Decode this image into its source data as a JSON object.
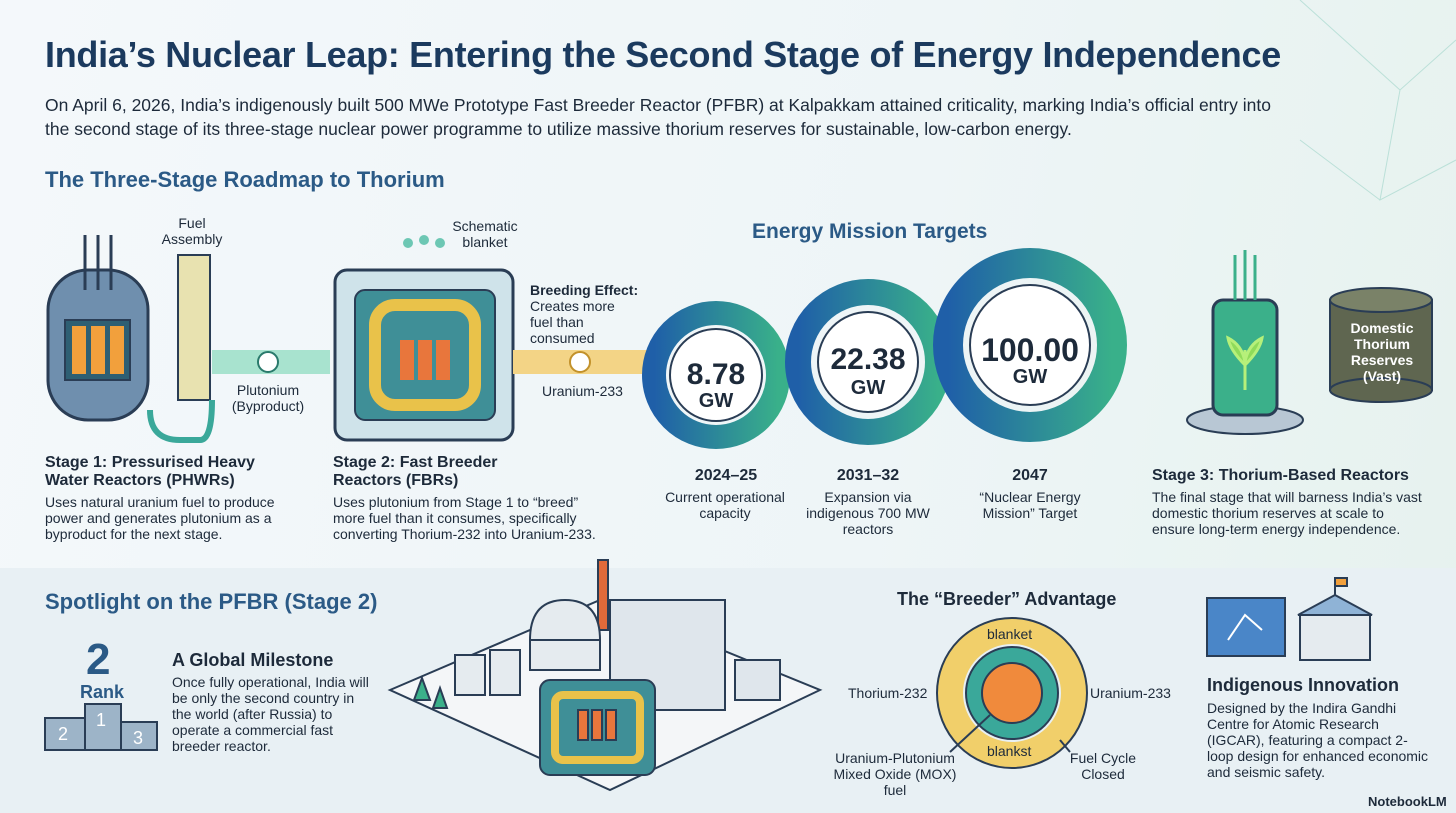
{
  "header": {
    "title": "India’s Nuclear Leap: Entering the Second Stage of Energy Independence",
    "intro": "On April 6, 2026, India’s indigenously built 500 MWe Prototype Fast Breeder Reactor (PFBR) at Kalpakkam attained criticality, marking India’s official entry into the second stage of its three-stage nuclear power programme to utilize massive thorium reserves for sustainable, low-carbon energy."
  },
  "roadmap": {
    "heading": "The Three-Stage Roadmap to Thorium",
    "stage1": {
      "fuel_label": "Fuel Assembly",
      "arrow_label": "Plutonium (Byproduct)",
      "title": "Stage 1: Pressurised Heavy Water Reactors (PHWRs)",
      "description": "Uses natural uranium fuel to produce power and generates plutonium as a byproduct for the next stage."
    },
    "stage2": {
      "schematic_label": "Schematic blanket",
      "breeding_title": "Breeding Effect:",
      "breeding_text": "Creates more fuel than consumed",
      "arrow_label": "Uranium-233",
      "title": "Stage 2: Fast Breeder Reactors (FBRs)",
      "description": "Uses plutonium from Stage 1 to “breed” more fuel than it consumes, specifically converting Thorium-232 into Uranium-233."
    },
    "targets": {
      "heading": "Energy Mission Targets",
      "items": [
        {
          "value": "8.78",
          "unit": "GW",
          "year": "2024–25",
          "description": "Current operational capacity"
        },
        {
          "value": "22.38",
          "unit": "GW",
          "year": "2031–32",
          "description": "Expansion via indigenous 700 MW reactors"
        },
        {
          "value": "100.00",
          "unit": "GW",
          "year": "2047",
          "description": "“Nuclear Energy Mission” Target"
        }
      ]
    },
    "stage3": {
      "reserves_label": "Domestic Thorium Reserves (Vast)",
      "title": "Stage 3: Thorium-Based Reactors",
      "description": "The final stage that will barness India’s vast domestic thorium reserves at scale to ensure long-term energy independence."
    }
  },
  "spotlight": {
    "heading": "Spotlight on the PFBR (Stage 2)",
    "rank_number": "2",
    "rank_label": "Rank",
    "podium": [
      "2",
      "1",
      "3"
    ],
    "milestone_title": "A Global Milestone",
    "milestone_text": "Once fully operational, India will be only the second country in the world (after Russia) to operate a commercial fast breeder reactor.",
    "breeder": {
      "heading": "The “Breeder” Advantage",
      "top_label": "blanket",
      "bottom_label": "blankst",
      "left_label": "Thorium-232",
      "right_label": "Uranium-233",
      "core_label": "Uranium-Plutonium Mixed Oxide (MOX) fuel",
      "cycle_label": "Fuel Cycle Closed"
    },
    "innovation": {
      "title": "Indigenous Innovation",
      "text": "Designed by the Indira Gandhi Centre for Atomic Research (IGCAR), featuring a compact 2-loop design for enhanced economic and seismic safety."
    }
  },
  "footer": {
    "brand": "NotebookLM"
  }
}
